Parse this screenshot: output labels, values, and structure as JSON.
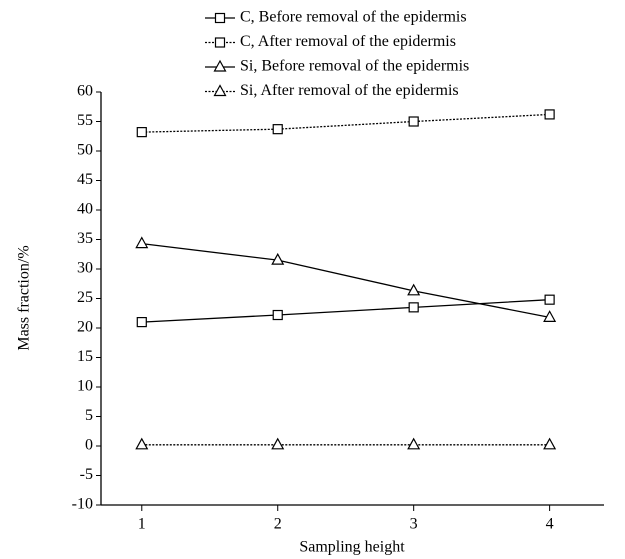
{
  "chart_data": {
    "type": "line",
    "x_label": "Sampling height",
    "y_label": "Mass fraction/%",
    "x": [
      1,
      2,
      3,
      4
    ],
    "xlim": [
      0.7,
      4.4
    ],
    "xticks": [
      1,
      2,
      3,
      4
    ],
    "ylim": [
      -10,
      60
    ],
    "yticks": [
      -10,
      -5,
      0,
      5,
      10,
      15,
      20,
      25,
      30,
      35,
      40,
      45,
      50,
      55,
      60
    ],
    "grid": false,
    "legend": "top",
    "series": [
      {
        "name": "C, Before removal of the epidermis",
        "color": "#000000",
        "marker": "square",
        "line_style": "solid",
        "values": [
          21,
          22.2,
          23.5,
          24.8
        ]
      },
      {
        "name": "C, After removal of the epidermis",
        "color": "#000000",
        "marker": "square",
        "line_style": "dotted",
        "values": [
          53.2,
          53.7,
          55,
          56.2
        ]
      },
      {
        "name": "Si, Before removal of the epidermis",
        "color": "#000000",
        "marker": "triangle",
        "line_style": "solid",
        "values": [
          34.3,
          31.5,
          26.3,
          21.8
        ]
      },
      {
        "name": "Si, After removal of the epidermis",
        "color": "#000000",
        "marker": "triangle",
        "line_style": "dotted",
        "values": [
          0.2,
          0.2,
          0.2,
          0.2
        ]
      }
    ]
  }
}
